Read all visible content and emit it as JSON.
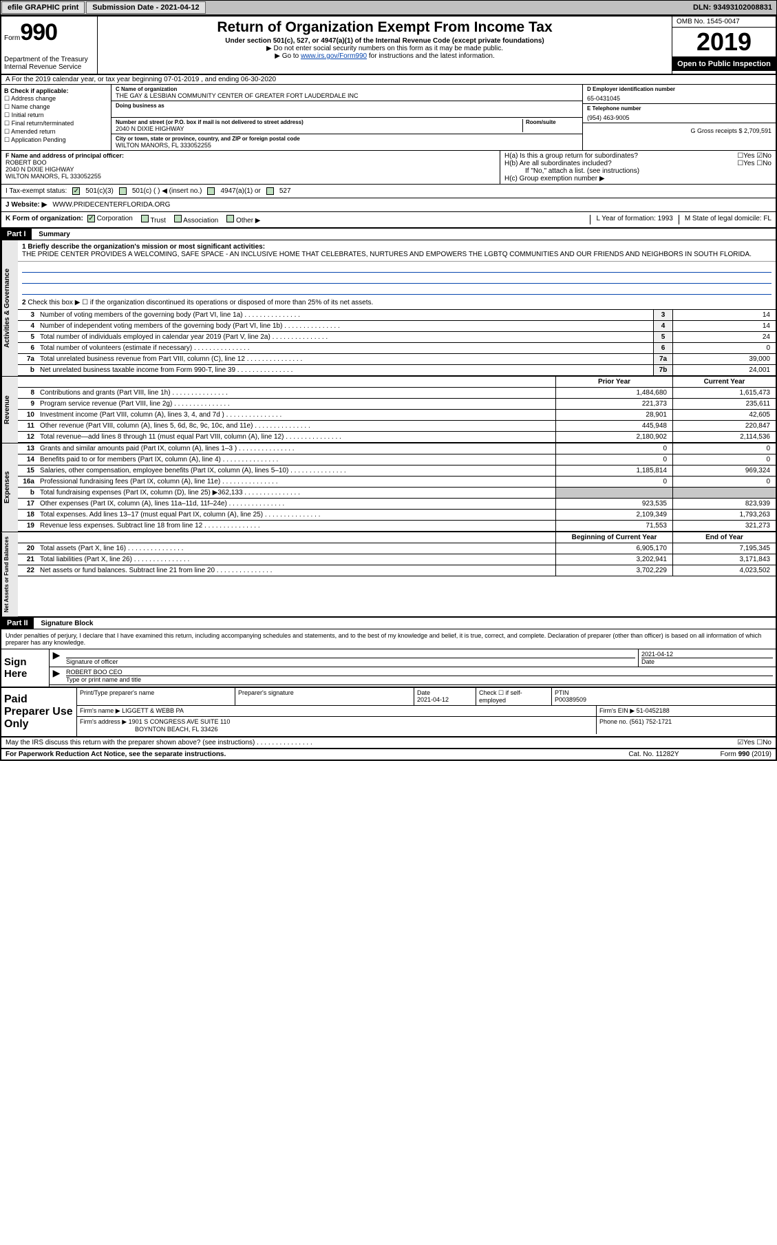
{
  "topbar": {
    "efile": "efile GRAPHIC print",
    "submission_label": "Submission Date - 2021-04-12",
    "dln": "DLN: 93493102008831"
  },
  "header": {
    "form_word": "Form",
    "form_num": "990",
    "dept": "Department of the Treasury\nInternal Revenue Service",
    "title": "Return of Organization Exempt From Income Tax",
    "subtitle": "Under section 501(c), 527, or 4947(a)(1) of the Internal Revenue Code (except private foundations)",
    "note1": "▶ Do not enter social security numbers on this form as it may be made public.",
    "note2_pre": "▶ Go to ",
    "note2_link": "www.irs.gov/Form990",
    "note2_post": " for instructions and the latest information.",
    "omb": "OMB No. 1545-0047",
    "year": "2019",
    "open_pub": "Open to Public Inspection"
  },
  "row_a": "A   For the 2019 calendar year, or tax year beginning 07-01-2019    , and ending 06-30-2020",
  "section_b": {
    "check_label": "B Check if applicable:",
    "checks": [
      "☐ Address change",
      "☐ Name change",
      "☐ Initial return",
      "☐ Final return/terminated",
      "☐ Amended return",
      "☐ Application Pending"
    ],
    "c_label": "C Name of organization",
    "c_name": "THE GAY & LESBIAN COMMUNITY CENTER OF GREATER FORT LAUDERDALE INC",
    "dba_label": "Doing business as",
    "addr_label": "Number and street (or P.O. box if mail is not delivered to street address)",
    "addr": "2040 N DIXIE HIGHWAY",
    "room_label": "Room/suite",
    "city_label": "City or town, state or province, country, and ZIP or foreign postal code",
    "city": "WILTON MANORS, FL  333052255",
    "d_label": "D Employer identification number",
    "d_ein": "65-0431045",
    "e_label": "E Telephone number",
    "e_phone": "(954) 463-9005",
    "g_label": "G Gross receipts $ 2,709,591"
  },
  "row_f": {
    "f_label": "F Name and address of principal officer:",
    "f_name": "ROBERT BOO",
    "f_addr1": "2040 N DIXIE HIGHWAY",
    "f_addr2": "WILTON MANORS, FL  333052255",
    "ha_label": "H(a)  Is this a group return for subordinates?",
    "ha_yn": "☐Yes  ☑No",
    "hb_label": "H(b)  Are all subordinates included?",
    "hb_yn": "☐Yes  ☐No",
    "hb_note": "If \"No,\" attach a list. (see instructions)",
    "hc_label": "H(c)  Group exemption number ▶"
  },
  "te_row": {
    "label": "I   Tax-exempt status:",
    "opt1": "501(c)(3)",
    "opt2": "501(c) (  ) ◀ (insert no.)",
    "opt3": "4947(a)(1) or",
    "opt4": "527"
  },
  "website_row": {
    "label": "J   Website: ▶",
    "url": "WWW.PRIDECENTERFLORIDA.ORG"
  },
  "row_k": {
    "k_label": "K Form of organization:",
    "corp": "Corporation",
    "trust": "Trust",
    "assoc": "Association",
    "other": "Other ▶",
    "l_label": "L Year of formation: 1993",
    "m_label": "M State of legal domicile: FL"
  },
  "part1": {
    "label": "Part I",
    "title": "Summary",
    "line1_label": "1  Briefly describe the organization's mission or most significant activities:",
    "mission": "THE PRIDE CENTER PROVIDES A WELCOMING, SAFE SPACE - AN INCLUSIVE HOME THAT CELEBRATES, NURTURES AND EMPOWERS THE LGBTQ COMMUNITIES AND OUR FRIENDS AND NEIGHBORS IN SOUTH FLORIDA.",
    "line2": "Check this box ▶ ☐  if the organization discontinued its operations or disposed of more than 25% of its net assets.",
    "act_rows": [
      {
        "n": "3",
        "t": "Number of voting members of the governing body (Part VI, line 1a)",
        "b": "3",
        "v": "14"
      },
      {
        "n": "4",
        "t": "Number of independent voting members of the governing body (Part VI, line 1b)",
        "b": "4",
        "v": "14"
      },
      {
        "n": "5",
        "t": "Total number of individuals employed in calendar year 2019 (Part V, line 2a)",
        "b": "5",
        "v": "24"
      },
      {
        "n": "6",
        "t": "Total number of volunteers (estimate if necessary)",
        "b": "6",
        "v": "0"
      },
      {
        "n": "7a",
        "t": "Total unrelated business revenue from Part VIII, column (C), line 12",
        "b": "7a",
        "v": "39,000"
      },
      {
        "n": "b",
        "t": "Net unrelated business taxable income from Form 990-T, line 39",
        "b": "7b",
        "v": "24,001"
      }
    ],
    "py_label": "Prior Year",
    "cy_label": "Current Year",
    "rev_rows": [
      {
        "n": "8",
        "t": "Contributions and grants (Part VIII, line 1h)",
        "py": "1,484,680",
        "cy": "1,615,473"
      },
      {
        "n": "9",
        "t": "Program service revenue (Part VIII, line 2g)",
        "py": "221,373",
        "cy": "235,611"
      },
      {
        "n": "10",
        "t": "Investment income (Part VIII, column (A), lines 3, 4, and 7d )",
        "py": "28,901",
        "cy": "42,605"
      },
      {
        "n": "11",
        "t": "Other revenue (Part VIII, column (A), lines 5, 6d, 8c, 9c, 10c, and 11e)",
        "py": "445,948",
        "cy": "220,847"
      },
      {
        "n": "12",
        "t": "Total revenue—add lines 8 through 11 (must equal Part VIII, column (A), line 12)",
        "py": "2,180,902",
        "cy": "2,114,536"
      }
    ],
    "exp_rows": [
      {
        "n": "13",
        "t": "Grants and similar amounts paid (Part IX, column (A), lines 1–3 )",
        "py": "0",
        "cy": "0"
      },
      {
        "n": "14",
        "t": "Benefits paid to or for members (Part IX, column (A), line 4)",
        "py": "0",
        "cy": "0"
      },
      {
        "n": "15",
        "t": "Salaries, other compensation, employee benefits (Part IX, column (A), lines 5–10)",
        "py": "1,185,814",
        "cy": "969,324"
      },
      {
        "n": "16a",
        "t": "Professional fundraising fees (Part IX, column (A), line 11e)",
        "py": "0",
        "cy": "0"
      },
      {
        "n": "b",
        "t": "Total fundraising expenses (Part IX, column (D), line 25) ▶362,133",
        "py": "",
        "cy": "",
        "shaded": true
      },
      {
        "n": "17",
        "t": "Other expenses (Part IX, column (A), lines 11a–11d, 11f–24e)",
        "py": "923,535",
        "cy": "823,939"
      },
      {
        "n": "18",
        "t": "Total expenses. Add lines 13–17 (must equal Part IX, column (A), line 25)",
        "py": "2,109,349",
        "cy": "1,793,263"
      },
      {
        "n": "19",
        "t": "Revenue less expenses. Subtract line 18 from line 12",
        "py": "71,553",
        "cy": "321,273"
      }
    ],
    "net_py": "Beginning of Current Year",
    "net_cy": "End of Year",
    "net_rows": [
      {
        "n": "20",
        "t": "Total assets (Part X, line 16)",
        "py": "6,905,170",
        "cy": "7,195,345"
      },
      {
        "n": "21",
        "t": "Total liabilities (Part X, line 26)",
        "py": "3,202,941",
        "cy": "3,171,843"
      },
      {
        "n": "22",
        "t": "Net assets or fund balances. Subtract line 21 from line 20",
        "py": "3,702,229",
        "cy": "4,023,502"
      }
    ],
    "side_act": "Activities & Governance",
    "side_rev": "Revenue",
    "side_exp": "Expenses",
    "side_net": "Net Assets or Fund Balances"
  },
  "part2": {
    "label": "Part II",
    "title": "Signature Block",
    "decl": "Under penalties of perjury, I declare that I have examined this return, including accompanying schedules and statements, and to the best of my knowledge and belief, it is true, correct, and complete. Declaration of preparer (other than officer) is based on all information of which preparer has any knowledge.",
    "sign_here": "Sign Here",
    "sig_officer": "Signature of officer",
    "sig_date": "2021-04-12",
    "sig_date_lbl": "Date",
    "sig_name": "ROBERT BOO CEO",
    "sig_name_lbl": "Type or print name and title",
    "paid": "Paid Preparer Use Only",
    "prep_name_lbl": "Print/Type preparer's name",
    "prep_sig_lbl": "Preparer's signature",
    "prep_date_lbl": "Date",
    "prep_date": "2021-04-12",
    "prep_check": "Check ☐ if self-employed",
    "ptin_lbl": "PTIN",
    "ptin": "P00389509",
    "firm_lbl": "Firm's name    ▶",
    "firm": "LIGGETT & WEBB PA",
    "firm_ein_lbl": "Firm's EIN ▶",
    "firm_ein": "51-0452188",
    "firm_addr_lbl": "Firm's address ▶",
    "firm_addr1": "1901 S CONGRESS AVE SUITE 110",
    "firm_addr2": "BOYNTON BEACH, FL  33426",
    "phone_lbl": "Phone no.",
    "phone": "(561) 752-1721",
    "discuss": "May the IRS discuss this return with the preparer shown above? (see instructions)",
    "discuss_yn": "☑Yes  ☐No"
  },
  "footer": {
    "pra": "For Paperwork Reduction Act Notice, see the separate instructions.",
    "cat": "Cat. No. 11282Y",
    "form": "Form 990 (2019)"
  }
}
